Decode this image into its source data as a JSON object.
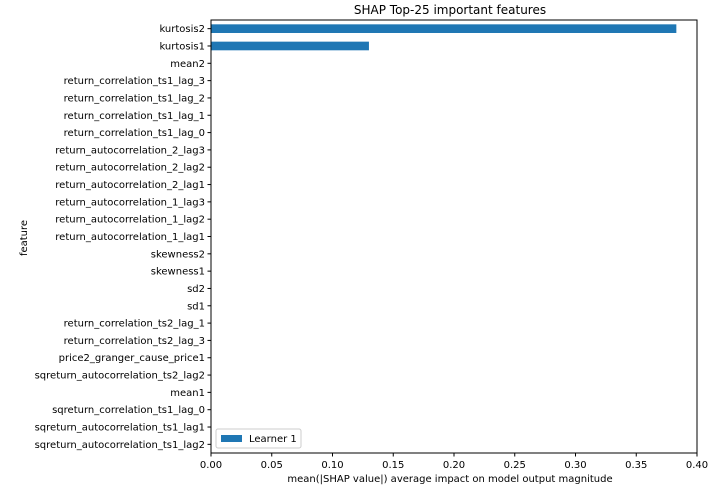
{
  "chart_data": {
    "type": "bar",
    "orientation": "horizontal",
    "title": "SHAP Top-25 important features",
    "xlabel": "mean(|SHAP value|) average impact on model output magnitude",
    "ylabel": "feature",
    "xlim": [
      0,
      0.4
    ],
    "xticks": [
      0.0,
      0.05,
      0.1,
      0.15,
      0.2,
      0.25,
      0.3,
      0.35,
      0.4
    ],
    "xtick_labels": [
      "0.00",
      "0.05",
      "0.10",
      "0.15",
      "0.20",
      "0.25",
      "0.30",
      "0.35",
      "0.40"
    ],
    "grid": false,
    "legend_position": "lower-left",
    "bar_color": "#1f77b4",
    "categories": [
      "kurtosis2",
      "kurtosis1",
      "mean2",
      "return_correlation_ts1_lag_3",
      "return_correlation_ts1_lag_2",
      "return_correlation_ts1_lag_1",
      "return_correlation_ts1_lag_0",
      "return_autocorrelation_2_lag3",
      "return_autocorrelation_2_lag2",
      "return_autocorrelation_2_lag1",
      "return_autocorrelation_1_lag3",
      "return_autocorrelation_1_lag2",
      "return_autocorrelation_1_lag1",
      "skewness2",
      "skewness1",
      "sd2",
      "sd1",
      "return_correlation_ts2_lag_1",
      "return_correlation_ts2_lag_3",
      "price2_granger_cause_price1",
      "sqreturn_autocorrelation_ts2_lag2",
      "mean1",
      "sqreturn_correlation_ts1_lag_0",
      "sqreturn_autocorrelation_ts1_lag1",
      "sqreturn_autocorrelation_ts1_lag2"
    ],
    "series": [
      {
        "name": "Learner 1",
        "values": [
          0.383,
          0.13,
          0,
          0,
          0,
          0,
          0,
          0,
          0,
          0,
          0,
          0,
          0,
          0,
          0,
          0,
          0,
          0,
          0,
          0,
          0,
          0,
          0,
          0,
          0
        ]
      }
    ]
  }
}
